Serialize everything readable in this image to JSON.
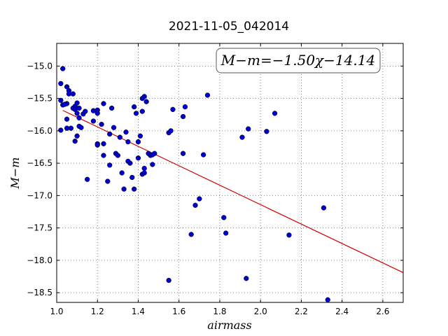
{
  "chart_data": {
    "type": "scatter",
    "title": "2021-11-05_042014",
    "xlabel": "airmass",
    "ylabel": "M−m",
    "xlim": [
      1.0,
      2.7
    ],
    "ylim": [
      -18.65,
      -14.65
    ],
    "y_inverted": true,
    "grid": true,
    "x_ticks": [
      "1.0",
      "1.2",
      "1.4",
      "1.6",
      "1.8",
      "2.0",
      "2.2",
      "2.4",
      "2.6"
    ],
    "y_ticks": [
      "−15.0",
      "−15.5",
      "−16.0",
      "−16.5",
      "−17.0",
      "−17.5",
      "−18.0",
      "−18.5"
    ],
    "annotation": "M−m=−1.50χ−14.14",
    "fit": {
      "slope": -1.5,
      "intercept": -14.14,
      "x_range": [
        1.03,
        2.7
      ],
      "color": "#d00000"
    },
    "points_color": "#0000cc",
    "points": [
      [
        1.03,
        -15.04
      ],
      [
        1.02,
        -15.27
      ],
      [
        1.02,
        -15.53
      ],
      [
        1.03,
        -15.6
      ],
      [
        1.05,
        -15.58
      ],
      [
        1.05,
        -15.32
      ],
      [
        1.06,
        -15.38
      ],
      [
        1.06,
        -15.43
      ],
      [
        1.08,
        -15.43
      ],
      [
        1.04,
        -15.59
      ],
      [
        1.05,
        -15.96
      ],
      [
        1.02,
        -15.99
      ],
      [
        1.05,
        -15.82
      ],
      [
        1.07,
        -15.96
      ],
      [
        1.08,
        -15.65
      ],
      [
        1.09,
        -15.62
      ],
      [
        1.09,
        -15.67
      ],
      [
        1.1,
        -15.57
      ],
      [
        1.1,
        -15.73
      ],
      [
        1.11,
        -15.65
      ],
      [
        1.11,
        -15.8
      ],
      [
        1.11,
        -15.93
      ],
      [
        1.12,
        -15.95
      ],
      [
        1.13,
        -15.74
      ],
      [
        1.14,
        -15.7
      ],
      [
        1.1,
        -16.08
      ],
      [
        1.09,
        -16.16
      ],
      [
        1.15,
        -16.75
      ],
      [
        1.18,
        -15.69
      ],
      [
        1.18,
        -15.85
      ],
      [
        1.2,
        -15.68
      ],
      [
        1.2,
        -15.73
      ],
      [
        1.2,
        -16.2
      ],
      [
        1.2,
        -16.22
      ],
      [
        1.22,
        -15.9
      ],
      [
        1.23,
        -16.38
      ],
      [
        1.23,
        -16.2
      ],
      [
        1.23,
        -15.58
      ],
      [
        1.25,
        -16.78
      ],
      [
        1.26,
        -16.53
      ],
      [
        1.26,
        -16.05
      ],
      [
        1.27,
        -15.65
      ],
      [
        1.28,
        -15.95
      ],
      [
        1.29,
        -16.35
      ],
      [
        1.3,
        -16.38
      ],
      [
        1.31,
        -16.1
      ],
      [
        1.32,
        -16.65
      ],
      [
        1.33,
        -16.9
      ],
      [
        1.34,
        -16.02
      ],
      [
        1.35,
        -16.17
      ],
      [
        1.35,
        -16.47
      ],
      [
        1.36,
        -16.5
      ],
      [
        1.37,
        -16.72
      ],
      [
        1.38,
        -15.63
      ],
      [
        1.38,
        -16.9
      ],
      [
        1.39,
        -15.73
      ],
      [
        1.4,
        -16.17
      ],
      [
        1.4,
        -16.42
      ],
      [
        1.41,
        -16.08
      ],
      [
        1.42,
        -16.67
      ],
      [
        1.42,
        -15.5
      ],
      [
        1.42,
        -15.7
      ],
      [
        1.43,
        -15.47
      ],
      [
        1.43,
        -16.65
      ],
      [
        1.43,
        -16.58
      ],
      [
        1.44,
        -15.55
      ],
      [
        1.45,
        -16.35
      ],
      [
        1.46,
        -16.38
      ],
      [
        1.47,
        -16.37
      ],
      [
        1.47,
        -16.52
      ],
      [
        1.48,
        -16.35
      ],
      [
        1.55,
        -16.03
      ],
      [
        1.55,
        -18.31
      ],
      [
        1.56,
        -16.0
      ],
      [
        1.57,
        -15.67
      ],
      [
        1.62,
        -15.78
      ],
      [
        1.62,
        -16.35
      ],
      [
        1.63,
        -15.63
      ],
      [
        1.66,
        -17.6
      ],
      [
        1.68,
        -17.15
      ],
      [
        1.7,
        -17.05
      ],
      [
        1.72,
        -16.37
      ],
      [
        1.74,
        -15.45
      ],
      [
        1.82,
        -17.34
      ],
      [
        1.83,
        -17.58
      ],
      [
        1.91,
        -16.1
      ],
      [
        1.93,
        -18.28
      ],
      [
        1.94,
        -15.97
      ],
      [
        2.03,
        -16.01
      ],
      [
        2.07,
        -15.73
      ],
      [
        2.14,
        -17.61
      ],
      [
        2.31,
        -17.19
      ],
      [
        2.33,
        -18.61
      ]
    ]
  }
}
